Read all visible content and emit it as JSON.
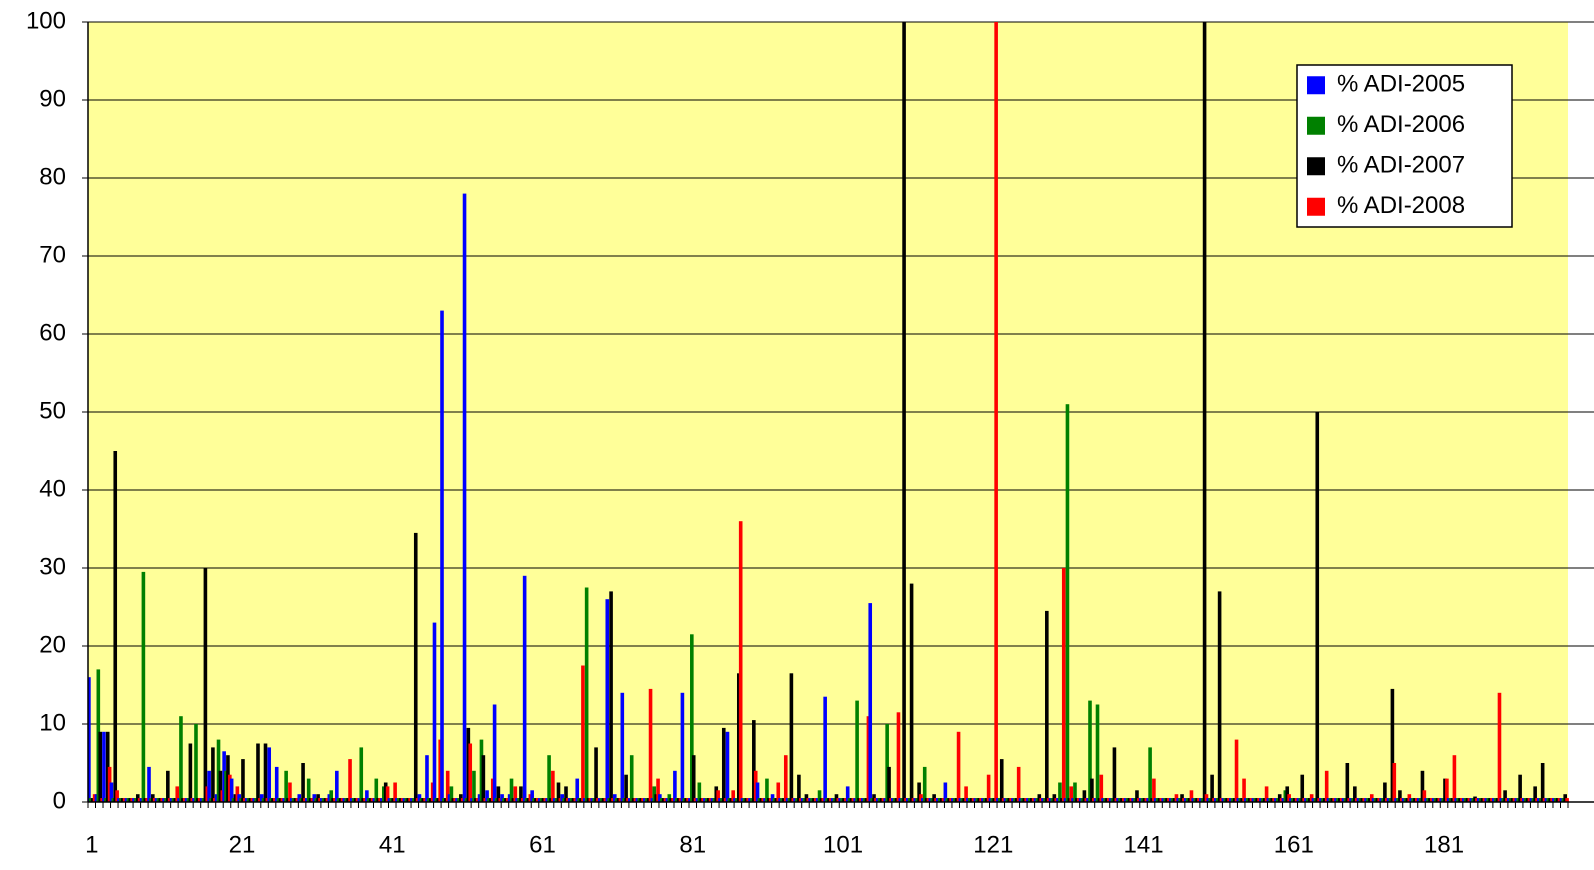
{
  "chart_data": {
    "type": "bar",
    "categories": [
      "1",
      null,
      null,
      null,
      null,
      null,
      null,
      null,
      null,
      null,
      null,
      null,
      null,
      null,
      null,
      null,
      null,
      null,
      null,
      null,
      "21",
      null,
      null,
      null,
      null,
      null,
      null,
      null,
      null,
      null,
      null,
      null,
      null,
      null,
      null,
      null,
      null,
      null,
      null,
      null,
      "41",
      null,
      null,
      null,
      null,
      null,
      null,
      null,
      null,
      null,
      null,
      null,
      null,
      null,
      null,
      null,
      null,
      null,
      null,
      null,
      "61",
      null,
      null,
      null,
      null,
      null,
      null,
      null,
      null,
      null,
      null,
      null,
      null,
      null,
      null,
      null,
      null,
      null,
      null,
      null,
      "81",
      null,
      null,
      null,
      null,
      null,
      null,
      null,
      null,
      null,
      null,
      null,
      null,
      null,
      null,
      null,
      null,
      null,
      null,
      null,
      "101",
      null,
      null,
      null,
      null,
      null,
      null,
      null,
      null,
      null,
      null,
      null,
      null,
      null,
      null,
      null,
      null,
      null,
      null,
      null,
      "121",
      null,
      null,
      null,
      null,
      null,
      null,
      null,
      null,
      null,
      null,
      null,
      null,
      null,
      null,
      null,
      null,
      null,
      null,
      null,
      "141",
      null,
      null,
      null,
      null,
      null,
      null,
      null,
      null,
      null,
      null,
      null,
      null,
      null,
      null,
      null,
      null,
      null,
      null,
      null,
      "161",
      null,
      null,
      null,
      null,
      null,
      null,
      null,
      null,
      null,
      null,
      null,
      null,
      null,
      null,
      null,
      null,
      null,
      null,
      null,
      "181",
      null,
      null,
      null,
      null,
      null,
      null,
      null,
      null,
      null,
      null,
      null,
      null,
      null,
      null,
      null,
      null
    ],
    "series": [
      {
        "name": "% ADI-2005",
        "color": "#0000ff",
        "values": [
          16,
          1,
          9,
          2.5,
          0.5,
          0.5,
          0.5,
          0.5,
          4.5,
          0.5,
          0.5,
          0.5,
          0.5,
          0.5,
          0.5,
          0.5,
          4,
          1,
          6.5,
          3,
          1,
          0.5,
          0.5,
          1,
          7,
          4.5,
          0.5,
          0.5,
          1,
          0.5,
          1,
          0.5,
          1,
          4,
          0.5,
          0.5,
          0.5,
          1.5,
          0.5,
          0.5,
          0.5,
          0.5,
          0.5,
          0.5,
          1,
          6,
          23,
          63,
          1,
          0.5,
          78,
          0.5,
          1,
          1.5,
          12.5,
          1,
          1,
          0.5,
          29,
          1.5,
          0.5,
          0.5,
          0.5,
          1,
          0.5,
          3,
          0.5,
          0.5,
          0.5,
          26,
          1,
          14,
          0.5,
          0.5,
          0.5,
          0.5,
          1,
          0.5,
          4,
          14,
          0.5,
          0.5,
          0.5,
          0.5,
          0.5,
          9,
          0.5,
          0.5,
          0.5,
          2.5,
          0.5,
          1,
          0.5,
          0.5,
          0.5,
          0.5,
          0.5,
          0.5,
          13.5,
          0.5,
          0.5,
          2,
          0.5,
          0.5,
          25.5,
          0.5,
          0.5,
          0.5,
          0.5,
          0.5,
          0.5,
          0.5,
          0.5,
          0.5,
          2.5,
          0.5,
          0.5,
          0.5,
          0.5,
          0.5,
          0.5,
          0.5,
          0.5,
          0.5,
          0.5,
          0.5,
          0.5,
          0.5,
          0.5,
          0.5,
          0.5,
          0.5,
          0.5,
          0.5,
          0.5,
          0.5,
          0.5,
          0.5,
          0.5,
          0.5,
          0.5,
          0.5,
          0.5,
          0.5,
          0.5,
          0.5,
          0.5,
          0.5,
          0.5,
          0.5,
          0.5,
          0.5,
          0.5,
          0.5,
          0.5,
          0.5,
          0.5,
          0.5,
          0.5,
          0.5,
          0.5,
          0.5,
          0.5,
          0.5,
          0.5,
          0.5,
          0.5,
          0.5,
          0.5,
          0.5,
          0.5,
          0.5,
          0.5,
          0.5,
          0.5,
          0.5,
          0.5,
          0.5,
          0.5,
          0.5,
          0.5,
          0.5,
          0.5,
          0.5,
          0.5,
          0.5,
          0.5,
          0.5,
          0.5,
          0.5,
          0.5,
          0.5,
          0.5,
          0.5,
          0.5,
          0.5,
          0.5
        ]
      },
      {
        "name": "% ADI-2006",
        "color": "#008000",
        "values": [
          0.5,
          17,
          0.5,
          0.5,
          0.5,
          0.5,
          0.5,
          29.5,
          0.5,
          0.5,
          0.5,
          0.5,
          11,
          0.5,
          10,
          0.5,
          0.5,
          8,
          4,
          0.5,
          0.5,
          0.5,
          0.5,
          0.5,
          0.5,
          0.5,
          4,
          0.5,
          0.5,
          3,
          0.5,
          0.5,
          1.5,
          0.5,
          0.5,
          0.5,
          7,
          0.5,
          3,
          2,
          0.5,
          0.5,
          0.5,
          0.5,
          0.5,
          0.5,
          0.5,
          0.5,
          2,
          0.5,
          0.5,
          4,
          8,
          0.5,
          0.5,
          0.5,
          3,
          0.5,
          0.5,
          0.5,
          0.5,
          6,
          0.5,
          0.5,
          0.5,
          0.5,
          27.5,
          0.5,
          0.5,
          0.5,
          0.5,
          0.5,
          6,
          0.5,
          0.5,
          2,
          0.5,
          1,
          0.5,
          0.5,
          21.5,
          2.5,
          0.5,
          0.5,
          0.5,
          0.5,
          0.5,
          0.5,
          0.5,
          0.5,
          3,
          0.5,
          0.5,
          0.5,
          0.5,
          0.5,
          0.5,
          1.5,
          0.5,
          0.5,
          0.5,
          0.5,
          13,
          0.5,
          0.5,
          0.5,
          10,
          0.5,
          0.5,
          0.5,
          0.5,
          4.5,
          0.5,
          0.5,
          0.5,
          0.5,
          0.5,
          0.5,
          0.5,
          0.5,
          0.5,
          0.5,
          0.5,
          0.5,
          0.5,
          0.5,
          0.5,
          0.5,
          0.5,
          2.5,
          51,
          2.5,
          0.5,
          13,
          12.5,
          0.5,
          0.5,
          0.5,
          0.5,
          0.5,
          0.5,
          7,
          0.5,
          0.5,
          0.5,
          0.5,
          0.5,
          0.5,
          0.5,
          0.5,
          0.5,
          0.5,
          0.5,
          0.5,
          0.5,
          0.5,
          0.5,
          0.5,
          0.5,
          1.5,
          0.5,
          0.5,
          0.5,
          0.5,
          0.5,
          0.5,
          0.5,
          0.5,
          0.5,
          0.5,
          0.5,
          0.5,
          0.5,
          0.5,
          0.5,
          0.5,
          0.5,
          0.5,
          0.5,
          0.5,
          0.5,
          0.5,
          0.5,
          0.5,
          0.5,
          0.5,
          0.5,
          0.5,
          0.5,
          0.5,
          0.5,
          0.5,
          0.5,
          0.5,
          0.5,
          0.5,
          0.5
        ]
      },
      {
        "name": "% ADI-2007",
        "color": "#000000",
        "values": [
          0.5,
          9,
          9,
          45,
          0.5,
          0.5,
          1,
          0.5,
          1,
          0.5,
          4,
          0.5,
          0.5,
          7.5,
          0.5,
          30,
          7,
          4,
          6,
          1,
          5.5,
          0.5,
          7.5,
          7.5,
          0.5,
          0.5,
          0.5,
          0.5,
          5,
          0.5,
          1,
          0.5,
          0.5,
          0.5,
          0.5,
          0.5,
          0.5,
          0.5,
          0.5,
          2.5,
          0.5,
          0.5,
          0.5,
          34.5,
          0.5,
          0.5,
          0.5,
          0.5,
          0.5,
          1,
          9.5,
          0.5,
          6,
          0.5,
          2,
          0.5,
          0.5,
          2,
          0.5,
          0.5,
          0.5,
          0.5,
          2.5,
          2,
          0.5,
          0.5,
          0.5,
          7,
          0.5,
          27,
          0.5,
          3.5,
          0.5,
          0.5,
          0.5,
          1,
          0.5,
          0.5,
          0.5,
          0.5,
          6,
          0.5,
          0.5,
          2,
          9.5,
          0.5,
          16.5,
          0.5,
          10.5,
          0.5,
          0.5,
          0.5,
          0.5,
          16.5,
          3.5,
          1,
          0.5,
          0.5,
          0.5,
          1,
          0.5,
          0.5,
          0.5,
          0.5,
          1,
          0.5,
          4.5,
          0.5,
          100,
          28,
          2.5,
          0.5,
          1,
          0.5,
          0.5,
          0.5,
          0.5,
          0.5,
          0.5,
          0.5,
          0.5,
          5.5,
          0.5,
          0.5,
          0.5,
          0.5,
          1,
          24.5,
          1,
          0.5,
          0.5,
          0.5,
          1.5,
          3,
          0.5,
          0.5,
          7,
          0.5,
          0.5,
          1.5,
          0.5,
          0.5,
          0.5,
          0.5,
          0.5,
          1,
          0.5,
          0.5,
          100,
          3.5,
          27,
          0.5,
          0.5,
          0.5,
          0.5,
          0.5,
          0.5,
          0.5,
          1,
          2,
          0.5,
          3.5,
          0.5,
          50,
          0.5,
          0.5,
          0.5,
          5,
          2,
          0.5,
          0.5,
          0.5,
          2.5,
          14.5,
          1.5,
          0.5,
          0.5,
          4,
          0.5,
          0.5,
          3,
          0.5,
          0.5,
          0.5,
          0.7,
          0.5,
          0.5,
          0.5,
          1.5,
          0.5,
          3.5,
          0.5,
          2,
          5,
          0.5,
          0.5,
          1
        ]
      },
      {
        "name": "% ADI-2008",
        "color": "#ff0000",
        "values": [
          1,
          0.5,
          4.5,
          1.5,
          0.5,
          0.5,
          0.5,
          0.5,
          0.5,
          0.5,
          0.5,
          2,
          0.5,
          0.5,
          0.5,
          2,
          0.5,
          1.5,
          3.5,
          2,
          0.5,
          0.5,
          0.5,
          0.5,
          0.5,
          0.5,
          2.5,
          0.5,
          0.5,
          0.5,
          0.5,
          0.5,
          0.5,
          0.5,
          5.5,
          0.5,
          0.5,
          0.5,
          0.5,
          2,
          2.5,
          0.5,
          0.5,
          0.5,
          0.5,
          2.5,
          8,
          4,
          0.5,
          0.5,
          7.5,
          0.5,
          0.5,
          3,
          0.5,
          0.5,
          2,
          0.5,
          1,
          0.5,
          0.5,
          4,
          0.5,
          0.5,
          0.5,
          17.5,
          0.5,
          0.5,
          0.5,
          0.5,
          0.5,
          0.5,
          0.5,
          0.5,
          14.5,
          3,
          0.5,
          0.5,
          0.5,
          0.5,
          0.5,
          0.5,
          0.5,
          1.5,
          0.5,
          1.5,
          36,
          0.5,
          4,
          0.5,
          0.5,
          2.5,
          6,
          0.5,
          0.5,
          0.5,
          0.5,
          0.5,
          0.5,
          0.5,
          0.5,
          0.5,
          0.5,
          11,
          0.5,
          0.5,
          0.5,
          11.5,
          0.5,
          0.5,
          1,
          0.5,
          0.5,
          0.5,
          0.5,
          9,
          2,
          0.5,
          0.5,
          3.5,
          100,
          0.5,
          0.5,
          4.5,
          0.5,
          0.5,
          0.5,
          0.5,
          0.5,
          30,
          2,
          0.5,
          0.5,
          0.5,
          3.5,
          0.5,
          0.5,
          0.5,
          0.5,
          0.5,
          0.5,
          3,
          0.5,
          0.5,
          1,
          0.5,
          1.5,
          0.5,
          1,
          0.5,
          0.5,
          0.5,
          8,
          3,
          0.5,
          0.5,
          2,
          0.5,
          0.5,
          1,
          0.5,
          0.5,
          1,
          0.5,
          4,
          0.5,
          0.5,
          0.5,
          0.5,
          0.5,
          1,
          0.5,
          0.5,
          5,
          0.5,
          1,
          0.5,
          1.5,
          0.5,
          0.5,
          3,
          6,
          0.5,
          0.5,
          0.5,
          0.5,
          0.5,
          14,
          0.5,
          0.5,
          0.5,
          0.5,
          0.5,
          0.5,
          0.5,
          0.5,
          0.5
        ]
      }
    ],
    "ylim": [
      0,
      100
    ],
    "yticks": [
      0,
      10,
      20,
      30,
      40,
      50,
      60,
      70,
      80,
      90,
      100
    ],
    "grid": true,
    "legend": "top-right",
    "background": "#ffff99"
  }
}
